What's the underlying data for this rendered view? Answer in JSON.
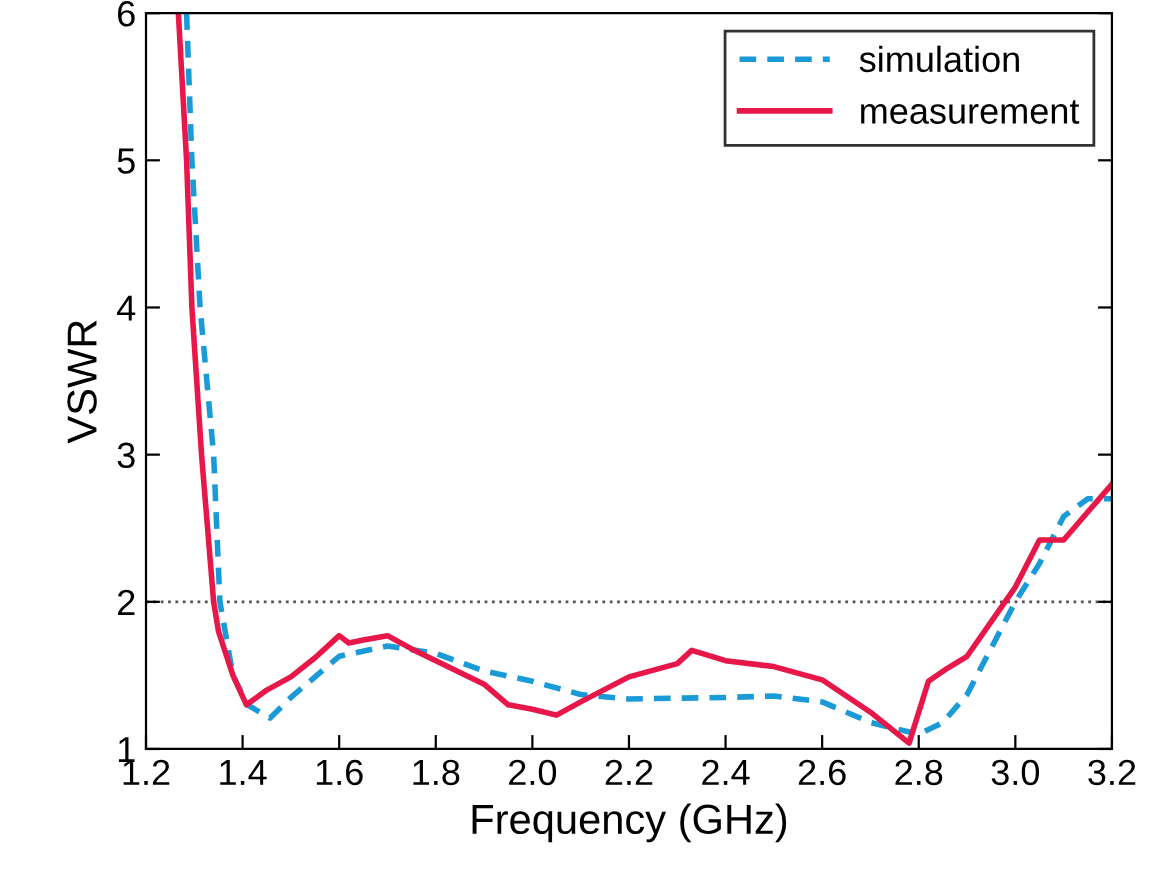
{
  "chart_data": {
    "type": "line",
    "xlabel": "Frequency (GHz)",
    "ylabel": "VSWR",
    "xlim": [
      1.2,
      3.2
    ],
    "ylim": [
      1,
      6
    ],
    "xticks": [
      {
        "value": 1.2,
        "label": "1.2"
      },
      {
        "value": 1.4,
        "label": "1.4"
      },
      {
        "value": 1.6,
        "label": "1.6"
      },
      {
        "value": 1.8,
        "label": "1.8"
      },
      {
        "value": 2.0,
        "label": "2.0"
      },
      {
        "value": 2.2,
        "label": "2.2"
      },
      {
        "value": 2.4,
        "label": "2.4"
      },
      {
        "value": 2.6,
        "label": "2.6"
      },
      {
        "value": 2.8,
        "label": "2.8"
      },
      {
        "value": 3.0,
        "label": "3.0"
      },
      {
        "value": 3.2,
        "label": "3.2"
      }
    ],
    "yticks": [
      1,
      2,
      3,
      4,
      5,
      6
    ],
    "grid": false,
    "legend": "top right",
    "marker": "none",
    "ref_lines": [
      {
        "axis": "y",
        "value": 2,
        "color": "#555555",
        "line_style": "dotted"
      }
    ],
    "series": [
      {
        "name": "simulation",
        "color": "#1a9ad6",
        "line_style": "dashed",
        "x": [
          1.284,
          1.295,
          1.312,
          1.34,
          1.353,
          1.38,
          1.41,
          1.457,
          1.5,
          1.6,
          1.7,
          1.8,
          1.9,
          2.0,
          2.1,
          2.2,
          2.4,
          2.5,
          2.6,
          2.7,
          2.8,
          2.85,
          2.9,
          3.0,
          3.05,
          3.1,
          3.15,
          3.2
        ],
        "values": [
          6,
          5,
          4,
          3,
          2,
          1.5,
          1.3,
          1.21,
          1.35,
          1.63,
          1.7,
          1.65,
          1.53,
          1.46,
          1.37,
          1.34,
          1.35,
          1.36,
          1.32,
          1.18,
          1.1,
          1.18,
          1.37,
          2.0,
          2.26,
          2.58,
          2.7,
          2.7
        ]
      },
      {
        "name": "measurement",
        "color": "#e8174a",
        "line_style": "solid",
        "x": [
          1.267,
          1.284,
          1.295,
          1.315,
          1.34,
          1.35,
          1.38,
          1.408,
          1.45,
          1.5,
          1.55,
          1.6,
          1.62,
          1.65,
          1.7,
          1.75,
          1.8,
          1.85,
          1.9,
          1.95,
          2.0,
          2.05,
          2.1,
          2.2,
          2.3,
          2.33,
          2.4,
          2.5,
          2.6,
          2.7,
          2.78,
          2.82,
          2.86,
          2.9,
          3.0,
          3.05,
          3.1,
          3.15,
          3.2
        ],
        "values": [
          6,
          5,
          4,
          3,
          2,
          1.8,
          1.5,
          1.3,
          1.4,
          1.49,
          1.62,
          1.77,
          1.72,
          1.74,
          1.77,
          1.68,
          1.6,
          1.52,
          1.44,
          1.3,
          1.27,
          1.23,
          1.32,
          1.49,
          1.58,
          1.67,
          1.6,
          1.56,
          1.47,
          1.25,
          1.04,
          1.46,
          1.55,
          1.63,
          2.1,
          2.42,
          2.42,
          2.61,
          2.8
        ]
      }
    ]
  }
}
